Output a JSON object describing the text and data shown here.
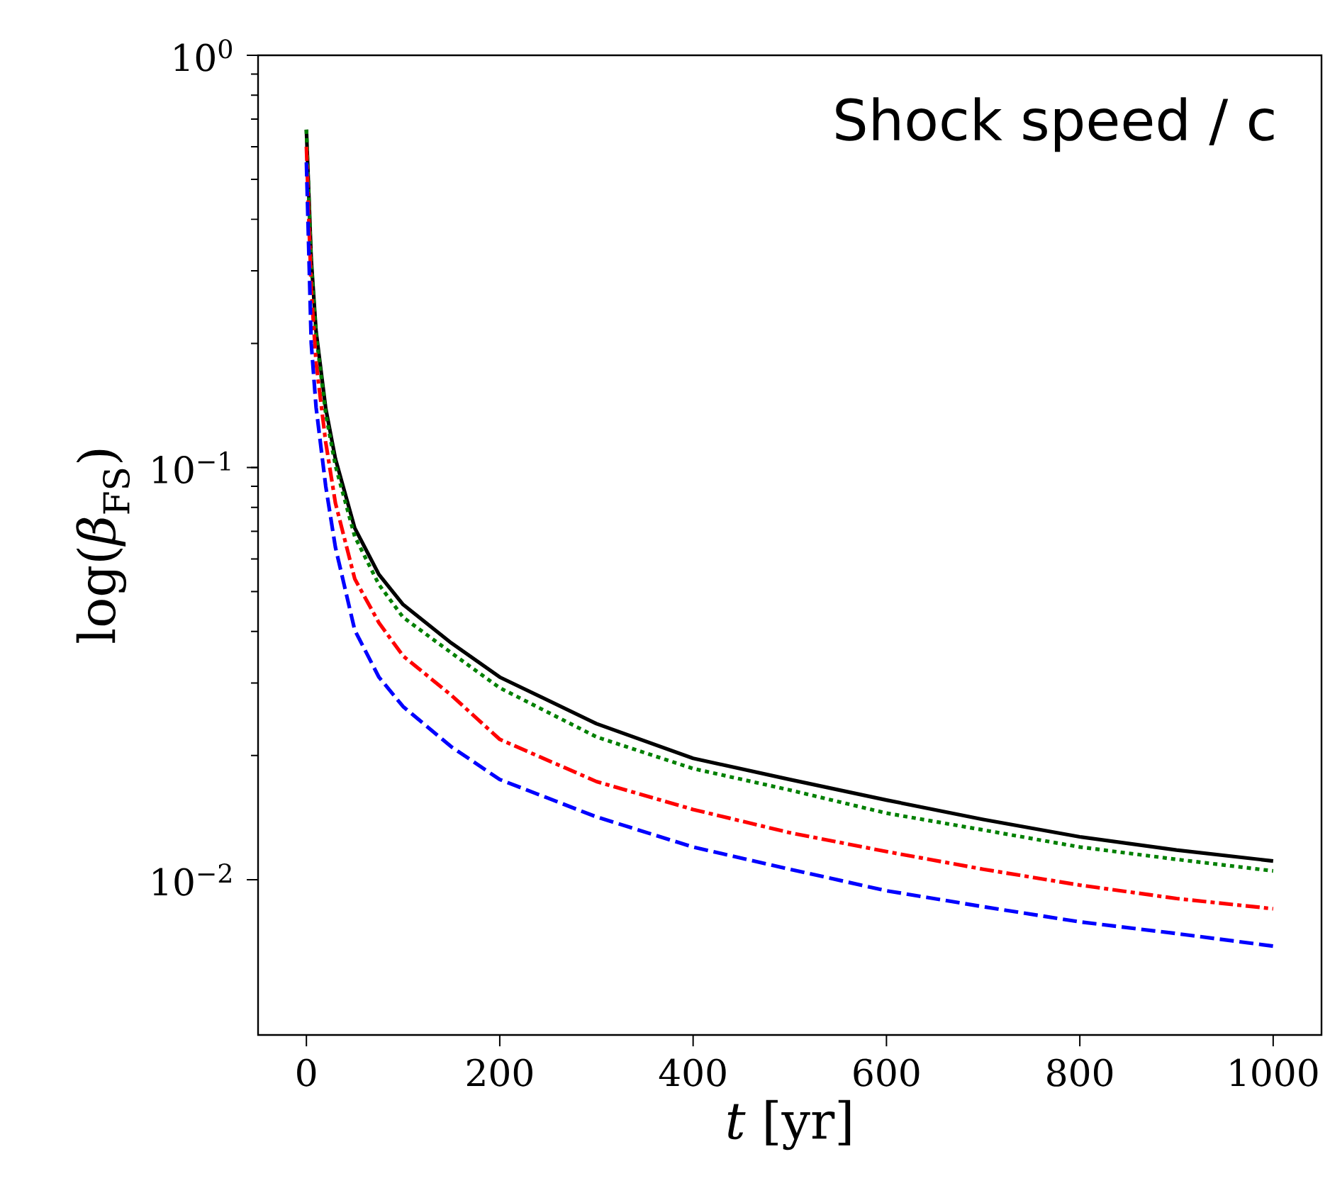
{
  "chart_data": {
    "type": "line",
    "annotations": [
      "Shock speed / c"
    ],
    "xlabel": "*t* [yr]",
    "ylabel": "log(*β*$_{FS}$)",
    "log": "y",
    "xlim": [
      -50,
      1050
    ],
    "ylim": [
      0.0042,
      1
    ],
    "xticks": [
      0,
      200,
      400,
      600,
      800,
      1000
    ],
    "yticks": [
      {
        "value": 0.01,
        "label": "10$^{−2}$"
      },
      {
        "value": 0.1,
        "label": "10$^{−1}$"
      },
      {
        "value": 1,
        "label": "10$^{0}$"
      }
    ],
    "marker": "none",
    "series": [
      {
        "color": "#000000",
        "line_style": "solid",
        "x": [
          0,
          5,
          10,
          20,
          30,
          50,
          75,
          100,
          150,
          200,
          300,
          400,
          500,
          600,
          700,
          800,
          900,
          1000
        ],
        "values": [
          0.66,
          0.32,
          0.214,
          0.139,
          0.105,
          0.0713,
          0.055,
          0.0465,
          0.0375,
          0.031,
          0.0239,
          0.0197,
          0.0175,
          0.0156,
          0.014,
          0.0127,
          0.0118,
          0.0111
        ]
      },
      {
        "color": "#008000",
        "line_style": "dotted",
        "x": [
          0,
          5,
          10,
          20,
          30,
          50,
          75,
          100,
          150,
          200,
          300,
          400,
          500,
          600,
          700,
          800,
          900,
          1000
        ],
        "values": [
          0.66,
          0.31,
          0.21,
          0.135,
          0.101,
          0.068,
          0.052,
          0.0433,
          0.0355,
          0.0292,
          0.0222,
          0.0186,
          0.0165,
          0.0145,
          0.0132,
          0.012,
          0.0112,
          0.0105
        ]
      },
      {
        "color": "#ff0000",
        "line_style": "dashdot",
        "x": [
          0,
          5,
          10,
          20,
          30,
          50,
          75,
          100,
          150,
          200,
          300,
          400,
          500,
          600,
          700,
          800,
          900,
          1000
        ],
        "values": [
          0.6,
          0.27,
          0.18,
          0.115,
          0.082,
          0.0537,
          0.042,
          0.0349,
          0.028,
          0.0219,
          0.0173,
          0.0148,
          0.013,
          0.0117,
          0.0106,
          0.0097,
          0.009,
          0.0085
        ]
      },
      {
        "color": "#0000ff",
        "line_style": "dashed",
        "x": [
          0,
          5,
          10,
          20,
          30,
          50,
          75,
          100,
          150,
          200,
          300,
          400,
          500,
          600,
          700,
          800,
          900,
          1000
        ],
        "values": [
          0.55,
          0.2,
          0.14,
          0.09,
          0.064,
          0.0403,
          0.031,
          0.0263,
          0.021,
          0.0175,
          0.0142,
          0.012,
          0.0106,
          0.0094,
          0.0086,
          0.0079,
          0.0074,
          0.0069
        ]
      }
    ]
  }
}
